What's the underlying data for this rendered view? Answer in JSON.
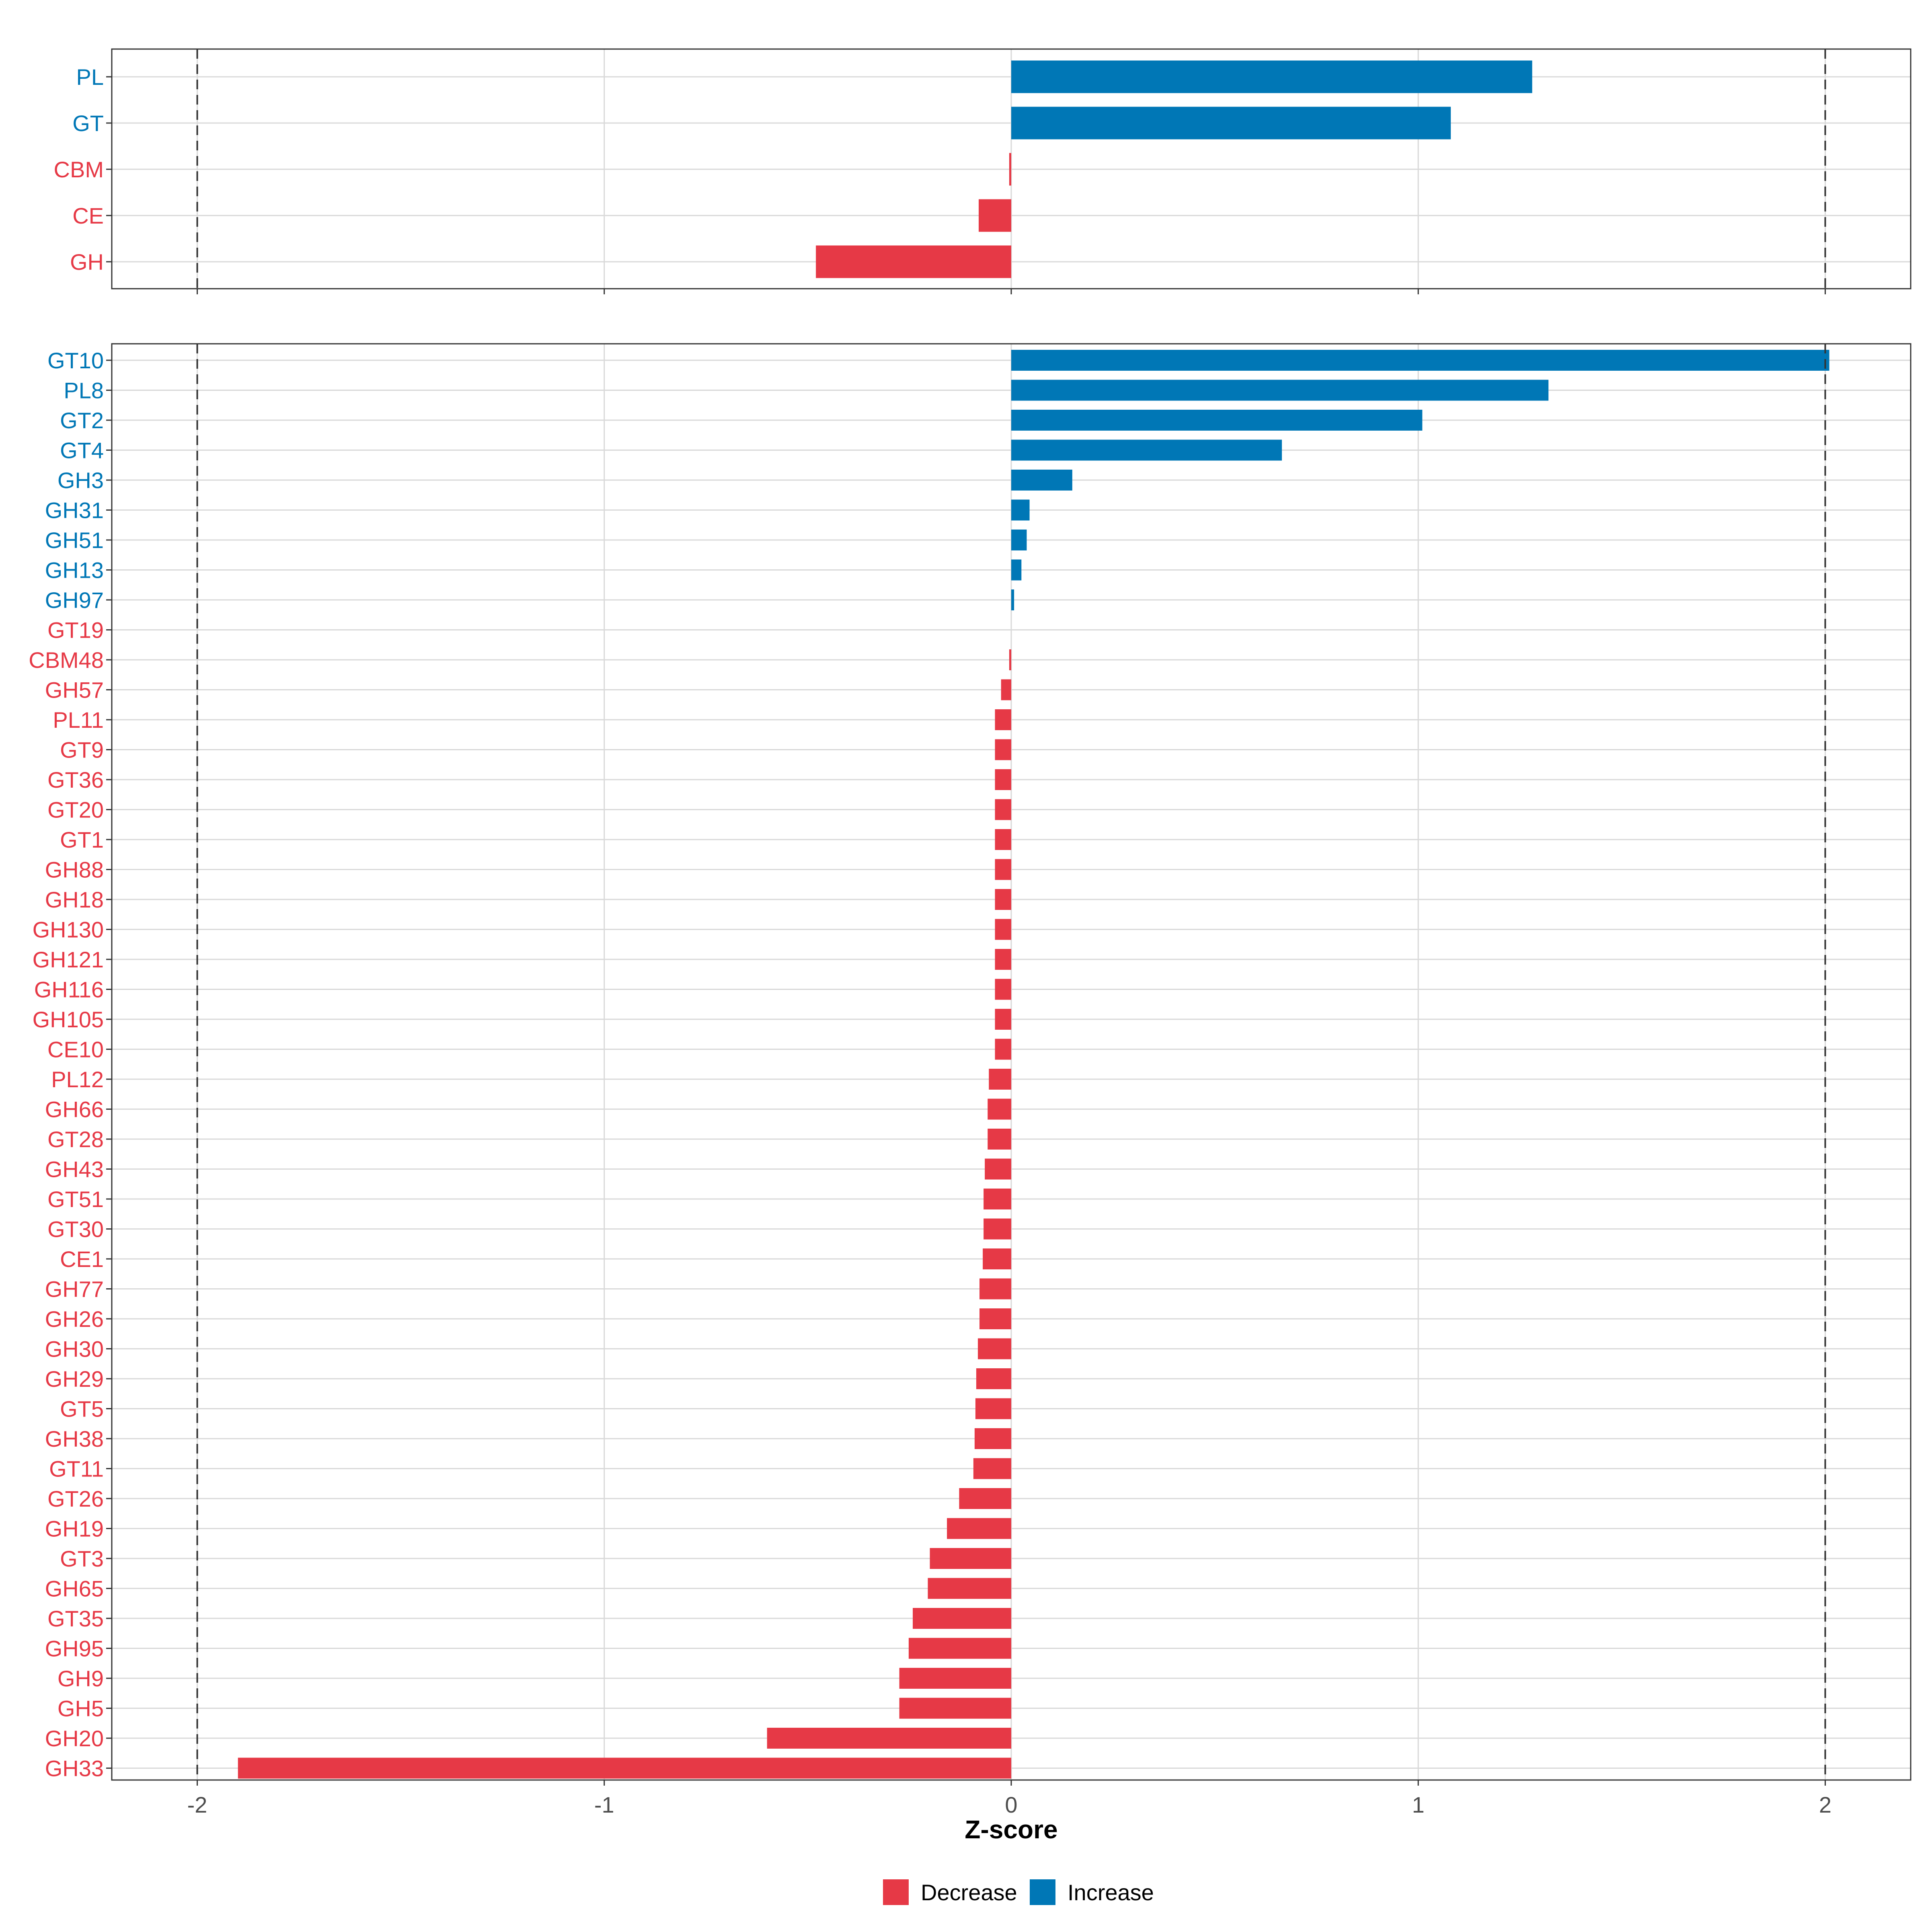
{
  "chart_data": [
    {
      "type": "bar",
      "orientation": "horizontal",
      "panel": "top",
      "categories": [
        "PL",
        "GT",
        "CBM",
        "CE",
        "GH"
      ],
      "values": [
        1.28,
        1.08,
        -0.005,
        -0.08,
        -0.48
      ],
      "groups": [
        "Increase",
        "Increase",
        "Decrease",
        "Decrease",
        "Decrease"
      ],
      "xlim": [
        -2.21,
        2.21
      ],
      "reference_lines": [
        -2,
        2
      ],
      "grid": true
    },
    {
      "type": "bar",
      "orientation": "horizontal",
      "panel": "bottom",
      "categories": [
        "GT10",
        "PL8",
        "GT2",
        "GT4",
        "GH3",
        "GH31",
        "GH51",
        "GH13",
        "GH97",
        "GT19",
        "CBM48",
        "GH57",
        "PL11",
        "GT9",
        "GT36",
        "GT20",
        "GT1",
        "GH88",
        "GH18",
        "GH130",
        "GH121",
        "GH116",
        "GH105",
        "CE10",
        "PL12",
        "GH66",
        "GT28",
        "GH43",
        "GT51",
        "GT30",
        "CE1",
        "GH77",
        "GH26",
        "GH30",
        "GH29",
        "GT5",
        "GH38",
        "GT11",
        "GT26",
        "GH19",
        "GT3",
        "GH65",
        "GT35",
        "GH95",
        "GH9",
        "GH5",
        "GH20",
        "GH33"
      ],
      "values": [
        2.01,
        1.32,
        1.01,
        0.665,
        0.15,
        0.045,
        0.038,
        0.025,
        0.007,
        0.0,
        -0.005,
        -0.025,
        -0.04,
        -0.04,
        -0.04,
        -0.04,
        -0.04,
        -0.04,
        -0.04,
        -0.04,
        -0.04,
        -0.04,
        -0.04,
        -0.04,
        -0.055,
        -0.058,
        -0.058,
        -0.065,
        -0.068,
        -0.068,
        -0.07,
        -0.078,
        -0.078,
        -0.082,
        -0.086,
        -0.088,
        -0.09,
        -0.093,
        -0.128,
        -0.158,
        -0.2,
        -0.205,
        -0.242,
        -0.252,
        -0.275,
        -0.275,
        -0.6,
        -1.9
      ],
      "groups": [
        "Increase",
        "Increase",
        "Increase",
        "Increase",
        "Increase",
        "Increase",
        "Increase",
        "Increase",
        "Increase",
        "Decrease",
        "Decrease",
        "Decrease",
        "Decrease",
        "Decrease",
        "Decrease",
        "Decrease",
        "Decrease",
        "Decrease",
        "Decrease",
        "Decrease",
        "Decrease",
        "Decrease",
        "Decrease",
        "Decrease",
        "Decrease",
        "Decrease",
        "Decrease",
        "Decrease",
        "Decrease",
        "Decrease",
        "Decrease",
        "Decrease",
        "Decrease",
        "Decrease",
        "Decrease",
        "Decrease",
        "Decrease",
        "Decrease",
        "Decrease",
        "Decrease",
        "Decrease",
        "Decrease",
        "Decrease",
        "Decrease",
        "Decrease",
        "Decrease",
        "Decrease",
        "Decrease"
      ],
      "xlim": [
        -2.21,
        2.21
      ],
      "reference_lines": [
        -2,
        2
      ],
      "grid": true
    }
  ],
  "axis": {
    "xlabel": "Z-score",
    "ticks": [
      -2,
      -1,
      0,
      1,
      2
    ],
    "tick_labels": [
      "-2",
      "-1",
      "0",
      "1",
      "2"
    ]
  },
  "legend": {
    "position": "bottom",
    "items": [
      {
        "name": "Decrease",
        "color": "#E63946"
      },
      {
        "name": "Increase",
        "color": "#0077B6"
      }
    ]
  },
  "colors": {
    "Decrease": "#E63946",
    "Increase": "#0077B6",
    "grid": "#D9D9D9",
    "frame": "#333333",
    "refline": "#333333"
  }
}
